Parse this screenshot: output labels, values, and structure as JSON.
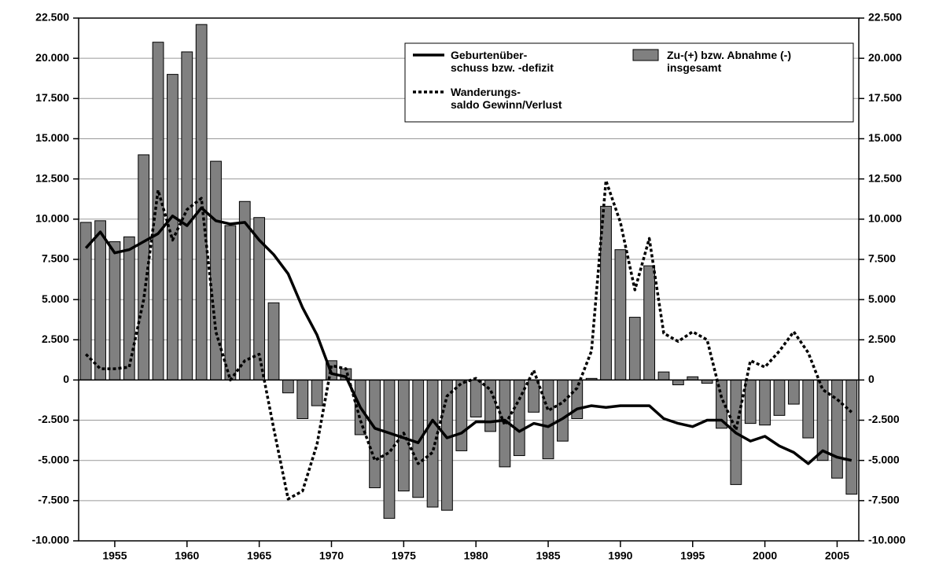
{
  "chart_data": {
    "type": "bar",
    "series": [
      {
        "name": "Zu-(+) bzw. Abnahme (-)\ninsgesamt",
        "type": "bar",
        "color": "#808080",
        "values": [
          9800,
          9900,
          8600,
          8900,
          14000,
          21000,
          19000,
          20400,
          22100,
          13600,
          9600,
          11100,
          10100,
          4800,
          -800,
          -2400,
          -1600,
          1200,
          700,
          -3400,
          -6700,
          -8600,
          -6900,
          -7300,
          -7900,
          -8100,
          -4400,
          -2300,
          -3200,
          -5400,
          -4700,
          -2000,
          -4900,
          -3800,
          -2400,
          100,
          10800,
          8100,
          3900,
          7100,
          500,
          -300,
          200,
          -200,
          -3000,
          -6500,
          -2700,
          -2800,
          -2200,
          -1500,
          -3600,
          -5000,
          -6100,
          -7100
        ]
      },
      {
        "name": "Geburtenüber-\nschuss bzw. -defizit",
        "type": "line",
        "style": "solid",
        "color": "#000000",
        "values": [
          8200,
          9200,
          7900,
          8100,
          8600,
          9100,
          10200,
          9600,
          10700,
          9900,
          9700,
          9800,
          8700,
          7800,
          6600,
          4500,
          2800,
          400,
          200,
          -1700,
          -3000,
          -3300,
          -3600,
          -3900,
          -2500,
          -3600,
          -3300,
          -2600,
          -2600,
          -2500,
          -3200,
          -2700,
          -2900,
          -2400,
          -1800,
          -1600,
          -1700,
          -1600,
          -1600,
          -1600,
          -2400,
          -2700,
          -2900,
          -2500,
          -2500,
          -3300,
          -3800,
          -3500,
          -4100,
          -4500,
          -5200,
          -4400,
          -4800,
          -5000
        ]
      },
      {
        "name": "Wanderungs-\nsaldo Gewinn/Verlust",
        "type": "line",
        "style": "dotted",
        "color": "#000000",
        "values": [
          1600,
          700,
          700,
          800,
          5000,
          11800,
          8700,
          10600,
          11300,
          3000,
          0,
          1200,
          1600,
          -3000,
          -7400,
          -6900,
          -4000,
          900,
          700,
          -2500,
          -5000,
          -4500,
          -3300,
          -5200,
          -4500,
          -1000,
          -200,
          100,
          -600,
          -2800,
          -1200,
          600,
          -1900,
          -1400,
          -500,
          1800,
          12400,
          9800,
          5600,
          8800,
          2900,
          2400,
          3000,
          2500,
          -1100,
          -3100,
          1200,
          800,
          1800,
          3000,
          1700,
          -600,
          -1200,
          -2000
        ]
      }
    ],
    "x": [
      1953,
      1954,
      1955,
      1956,
      1957,
      1958,
      1959,
      1960,
      1961,
      1962,
      1963,
      1964,
      1965,
      1966,
      1967,
      1968,
      1969,
      1970,
      1971,
      1972,
      1973,
      1974,
      1975,
      1976,
      1977,
      1978,
      1979,
      1980,
      1981,
      1982,
      1983,
      1984,
      1985,
      1986,
      1987,
      1988,
      1989,
      1990,
      1991,
      1992,
      1993,
      1994,
      1995,
      1996,
      1997,
      1998,
      1999,
      2000,
      2001,
      2002,
      2003,
      2004,
      2005,
      2006
    ],
    "xlim": [
      1952.5,
      2006.5
    ],
    "xticks": [
      1955,
      1960,
      1965,
      1970,
      1975,
      1980,
      1985,
      1990,
      1995,
      2000,
      2005
    ],
    "ylim": [
      -10000,
      22500
    ],
    "yticks": [
      {
        "value": -10000,
        "label": "-10.000"
      },
      {
        "value": -7500,
        "label": "-7.500"
      },
      {
        "value": -5000,
        "label": "-5.000"
      },
      {
        "value": -2500,
        "label": "-2.500"
      },
      0,
      {
        "value": 2500,
        "label": "2.500"
      },
      {
        "value": 5000,
        "label": "5.000"
      },
      {
        "value": 7500,
        "label": "7.500"
      },
      {
        "value": 10000,
        "label": "10.000"
      },
      {
        "value": 12500,
        "label": "12.500"
      },
      {
        "value": 15000,
        "label": "15.000"
      },
      {
        "value": 17500,
        "label": "17.500"
      },
      {
        "value": 20000,
        "label": "20.000"
      },
      {
        "value": 22500,
        "label": "22.500"
      }
    ],
    "grid": true,
    "right_axis": true
  }
}
